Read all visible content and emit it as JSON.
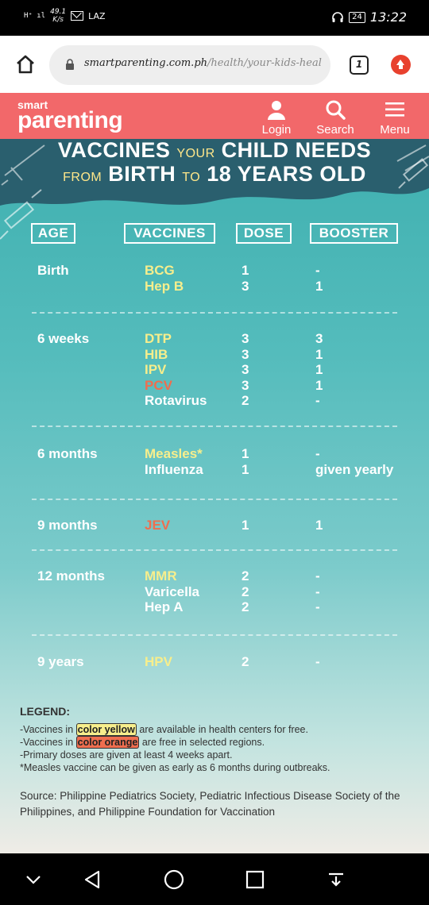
{
  "status_bar": {
    "signal_text": "H⁺ ıl",
    "speed": "49.1",
    "speed_unit": "K/s",
    "carrier": "LAZ",
    "battery": "24",
    "time": "13:22"
  },
  "browser": {
    "url_domain": "smartparenting.com.ph",
    "url_path": "/health/your-kids-heal",
    "tab_count": "1",
    "icons": {
      "home": "home-icon",
      "lock": "lock-icon",
      "update": "upload-icon"
    }
  },
  "site_header": {
    "logo_top": "smart",
    "logo_bottom": "parenting",
    "login_label": "Login",
    "search_label": "Search",
    "menu_label": "Menu",
    "bg_color": "#f2686a"
  },
  "infographic": {
    "title_line1_a": "VACCINES",
    "title_line1_b": "YOUR",
    "title_line1_c": "CHILD NEEDS",
    "title_line2_a": "FROM",
    "title_line2_b": "BIRTH",
    "title_line2_c": "TO",
    "title_line2_d": "18 YEARS OLD",
    "headers": {
      "age": "AGE",
      "vaccines": "VACCINES",
      "dose": "DOSE",
      "booster": "BOOSTER"
    },
    "groups": [
      {
        "age": "Birth",
        "rows": [
          {
            "vaccine": "BCG",
            "color": "yellow",
            "dose": "1",
            "booster": "-"
          },
          {
            "vaccine": "Hep B",
            "color": "yellow",
            "dose": "3",
            "booster": "1"
          }
        ]
      },
      {
        "age": "6 weeks",
        "rows": [
          {
            "vaccine": "DTP",
            "color": "yellow",
            "dose": "3",
            "booster": "3"
          },
          {
            "vaccine": "HIB",
            "color": "yellow",
            "dose": "3",
            "booster": "1"
          },
          {
            "vaccine": "IPV",
            "color": "yellow",
            "dose": "3",
            "booster": "1"
          },
          {
            "vaccine": "PCV",
            "color": "orange",
            "dose": "3",
            "booster": "1"
          },
          {
            "vaccine": "Rotavirus",
            "color": "white",
            "dose": "2",
            "booster": "-"
          }
        ]
      },
      {
        "age": "6 months",
        "rows": [
          {
            "vaccine": "Measles*",
            "color": "yellow",
            "dose": "1",
            "booster": "-"
          },
          {
            "vaccine": "Influenza",
            "color": "white",
            "dose": "1",
            "booster": "given yearly"
          }
        ]
      },
      {
        "age": "9 months",
        "rows": [
          {
            "vaccine": "JEV",
            "color": "orange",
            "dose": "1",
            "booster": "1"
          }
        ]
      },
      {
        "age": "12 months",
        "rows": [
          {
            "vaccine": "MMR",
            "color": "yellow",
            "dose": "2",
            "booster": "-"
          },
          {
            "vaccine": "Varicella",
            "color": "white",
            "dose": "2",
            "booster": "-"
          },
          {
            "vaccine": "Hep A",
            "color": "white",
            "dose": "2",
            "booster": "-"
          }
        ]
      },
      {
        "age": "9 years",
        "rows": [
          {
            "vaccine": "HPV",
            "color": "yellow",
            "dose": "2",
            "booster": "-"
          }
        ]
      }
    ],
    "legend": {
      "title": "LEGEND:",
      "line1_pre": "-Vaccines in ",
      "line1_hl": "color yellow",
      "line1_post": " are available in health centers for free.",
      "line2_pre": "-Vaccines in ",
      "line2_hl": "color orange",
      "line2_post": " are free in selected regions.",
      "line3": "-Primary doses are given at least 4 weeks apart.",
      "line4": "*Measles vaccine can be given as early as 6 months during outbreaks."
    },
    "source": "Source: Philippine Pediatrics Society, Pediatric Infectious Disease Society of the Philippines, and Philippine Foundation for Vaccination",
    "colors": {
      "yellow": "#f7ee8c",
      "orange": "#ef6e4f",
      "teal": "#3fb0b0",
      "banner": "#2a5f6e"
    }
  },
  "nav_bar": {
    "icons": [
      "chevron-down-icon",
      "back-icon",
      "home-icon",
      "recents-icon",
      "notification-pull-icon"
    ]
  }
}
